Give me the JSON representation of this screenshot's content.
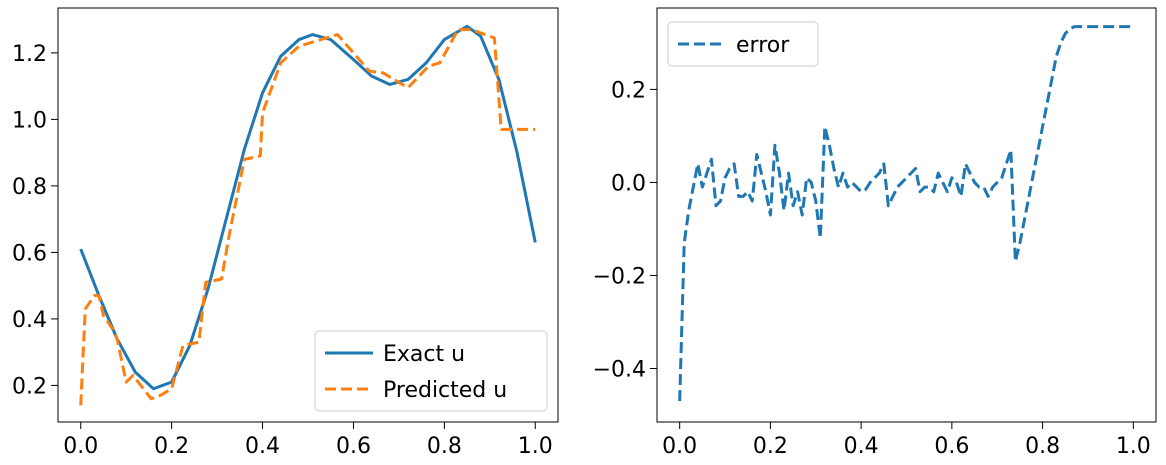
{
  "chart_data": [
    {
      "type": "line",
      "title": "",
      "xlabel": "",
      "ylabel": "",
      "xlim": [
        -0.05,
        1.05
      ],
      "ylim": [
        0.09,
        1.335
      ],
      "xticks": [
        0.0,
        0.2,
        0.4,
        0.6,
        0.8,
        1.0
      ],
      "xtick_labels": [
        "0.0",
        "0.2",
        "0.4",
        "0.6",
        "0.8",
        "1.0"
      ],
      "yticks": [
        0.2,
        0.4,
        0.6,
        0.8,
        1.0,
        1.2
      ],
      "ytick_labels": [
        "0.2",
        "0.4",
        "0.6",
        "0.8",
        "1.0",
        "1.2"
      ],
      "legend": "bottom-right",
      "grid": false,
      "series": [
        {
          "name": "Exact u",
          "color": "#1f77b4",
          "style": "solid",
          "x": [
            0.0,
            0.04,
            0.08,
            0.12,
            0.16,
            0.2,
            0.24,
            0.28,
            0.32,
            0.36,
            0.4,
            0.44,
            0.48,
            0.51,
            0.55,
            0.6,
            0.64,
            0.68,
            0.72,
            0.76,
            0.8,
            0.85,
            0.88,
            0.92,
            0.96,
            1.0
          ],
          "y": [
            0.61,
            0.47,
            0.34,
            0.24,
            0.19,
            0.21,
            0.32,
            0.49,
            0.7,
            0.91,
            1.08,
            1.19,
            1.24,
            1.255,
            1.24,
            1.18,
            1.13,
            1.105,
            1.12,
            1.17,
            1.24,
            1.28,
            1.25,
            1.12,
            0.9,
            0.63
          ]
        },
        {
          "name": "Predicted u",
          "color": "#ff7f0e",
          "style": "dashed",
          "x": [
            0.0,
            0.01,
            0.01,
            0.03,
            0.04,
            0.05,
            0.05,
            0.07,
            0.07,
            0.08,
            0.08,
            0.1,
            0.1,
            0.115,
            0.115,
            0.155,
            0.155,
            0.175,
            0.175,
            0.2,
            0.2,
            0.225,
            0.225,
            0.26,
            0.26,
            0.275,
            0.275,
            0.31,
            0.31,
            0.325,
            0.325,
            0.36,
            0.36,
            0.395,
            0.395,
            0.4,
            0.4,
            0.44,
            0.44,
            0.48,
            0.48,
            0.565,
            0.565,
            0.635,
            0.635,
            0.665,
            0.665,
            0.72,
            0.72,
            0.765,
            0.765,
            0.79,
            0.79,
            0.83,
            0.83,
            0.86,
            0.86,
            0.91,
            0.91,
            0.925,
            0.925,
            1.0
          ],
          "y": [
            0.14,
            0.43,
            0.43,
            0.47,
            0.47,
            0.41,
            0.41,
            0.37,
            0.37,
            0.34,
            0.34,
            0.21,
            0.21,
            0.23,
            0.23,
            0.16,
            0.16,
            0.17,
            0.17,
            0.19,
            0.19,
            0.32,
            0.32,
            0.33,
            0.33,
            0.51,
            0.51,
            0.52,
            0.52,
            0.64,
            0.64,
            0.88,
            0.88,
            0.89,
            0.89,
            1.02,
            1.02,
            1.17,
            1.17,
            1.22,
            1.22,
            1.255,
            1.255,
            1.145,
            1.145,
            1.14,
            1.14,
            1.095,
            1.095,
            1.16,
            1.16,
            1.17,
            1.17,
            1.27,
            1.27,
            1.27,
            1.27,
            1.245,
            1.245,
            0.97,
            0.97,
            0.97
          ]
        }
      ]
    },
    {
      "type": "line",
      "title": "",
      "xlabel": "",
      "ylabel": "",
      "xlim": [
        -0.05,
        1.05
      ],
      "ylim": [
        -0.515,
        0.375
      ],
      "xticks": [
        0.0,
        0.2,
        0.4,
        0.6,
        0.8,
        1.0
      ],
      "xtick_labels": [
        "0.0",
        "0.2",
        "0.4",
        "0.6",
        "0.8",
        "1.0"
      ],
      "yticks": [
        -0.4,
        -0.2,
        0.0,
        0.2
      ],
      "ytick_labels": [
        "−0.4",
        "−0.2",
        "0.0",
        "0.2"
      ],
      "legend": "top-left",
      "grid": false,
      "series": [
        {
          "name": "error",
          "color": "#1f77b4",
          "style": "dashed",
          "x": [
            0.0,
            0.01,
            0.02,
            0.03,
            0.04,
            0.05,
            0.06,
            0.07,
            0.08,
            0.09,
            0.1,
            0.11,
            0.12,
            0.13,
            0.14,
            0.15,
            0.16,
            0.17,
            0.18,
            0.19,
            0.2,
            0.21,
            0.22,
            0.23,
            0.24,
            0.25,
            0.26,
            0.27,
            0.28,
            0.29,
            0.3,
            0.31,
            0.32,
            0.33,
            0.34,
            0.35,
            0.36,
            0.37,
            0.38,
            0.39,
            0.4,
            0.41,
            0.42,
            0.43,
            0.44,
            0.45,
            0.46,
            0.47,
            0.48,
            0.49,
            0.5,
            0.51,
            0.52,
            0.53,
            0.54,
            0.55,
            0.56,
            0.57,
            0.58,
            0.59,
            0.6,
            0.61,
            0.62,
            0.63,
            0.64,
            0.65,
            0.66,
            0.67,
            0.68,
            0.69,
            0.7,
            0.71,
            0.72,
            0.73,
            0.74,
            0.75,
            0.76,
            0.77,
            0.78,
            0.79,
            0.8,
            0.81,
            0.82,
            0.83,
            0.84,
            0.85,
            0.86,
            0.87,
            0.88,
            0.89,
            0.9,
            0.91,
            0.92,
            0.93,
            0.94,
            0.95,
            0.96,
            0.97,
            0.98,
            0.99,
            1.0
          ],
          "y": [
            -0.47,
            -0.13,
            -0.06,
            -0.01,
            0.04,
            -0.01,
            0.02,
            0.05,
            -0.05,
            -0.04,
            0.01,
            0.03,
            0.04,
            -0.03,
            -0.03,
            -0.02,
            -0.04,
            0.06,
            0.02,
            -0.02,
            -0.07,
            0.08,
            0.02,
            -0.06,
            0.02,
            -0.05,
            -0.02,
            -0.07,
            0.01,
            0.0,
            -0.04,
            -0.12,
            0.12,
            0.08,
            0.03,
            -0.01,
            0.02,
            -0.01,
            0.0,
            -0.01,
            -0.02,
            -0.015,
            0.0,
            0.01,
            0.02,
            0.04,
            -0.05,
            -0.03,
            -0.01,
            0.0,
            0.01,
            0.02,
            0.03,
            -0.02,
            -0.01,
            -0.01,
            -0.02,
            0.02,
            0.0,
            -0.02,
            0.01,
            0.0,
            -0.03,
            0.04,
            0.02,
            0.0,
            -0.01,
            -0.01,
            -0.03,
            -0.01,
            0.0,
            0.01,
            0.04,
            0.07,
            -0.17,
            -0.13,
            -0.08,
            -0.03,
            0.02,
            0.07,
            0.12,
            0.17,
            0.22,
            0.27,
            0.3,
            0.32,
            0.33,
            0.335,
            0.335,
            0.335,
            0.335,
            0.335,
            0.335,
            0.335,
            0.335,
            0.335,
            0.335,
            0.335,
            0.335,
            0.335,
            0.335
          ]
        }
      ]
    }
  ]
}
